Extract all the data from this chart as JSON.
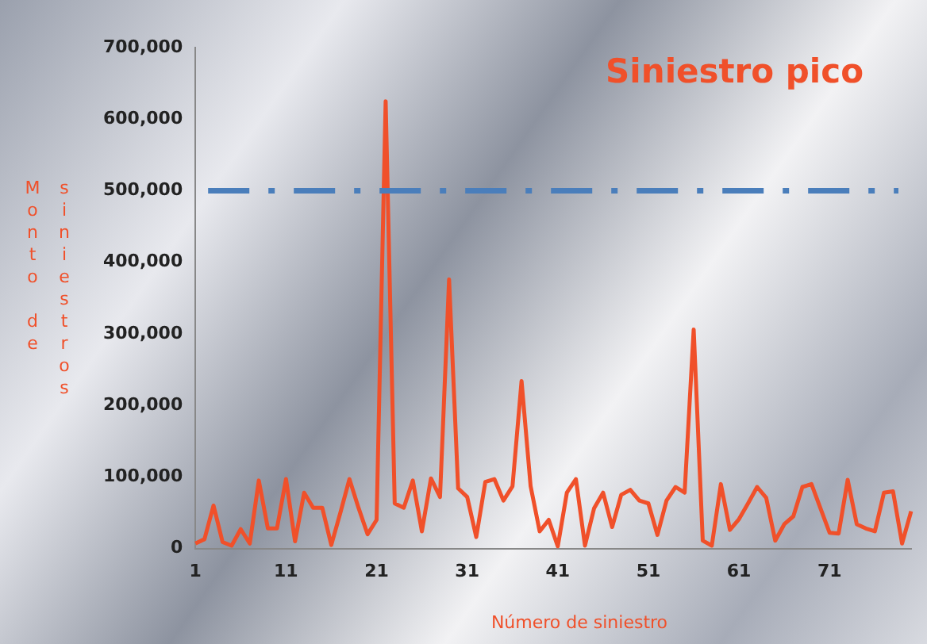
{
  "chart_data": {
    "type": "line",
    "title": "Siniestro pico",
    "xlabel": "Número de siniestro",
    "ylabel": "Monto de siniestros",
    "categories": [
      "1",
      null,
      null,
      null,
      null,
      null,
      null,
      null,
      null,
      null,
      "11",
      null,
      null,
      null,
      null,
      null,
      null,
      null,
      null,
      null,
      "21",
      null,
      null,
      null,
      null,
      null,
      null,
      null,
      null,
      null,
      "31",
      null,
      null,
      null,
      null,
      null,
      null,
      null,
      null,
      null,
      "41",
      null,
      null,
      null,
      null,
      null,
      null,
      null,
      null,
      null,
      "51",
      null,
      null,
      null,
      null,
      null,
      null,
      null,
      null,
      null,
      "61",
      null,
      null,
      null,
      null,
      null,
      null,
      null,
      null,
      null,
      "71",
      null,
      null,
      null,
      null,
      null,
      null,
      null,
      null,
      null
    ],
    "series": [
      {
        "color": "#f0502a",
        "values": [
          7000,
          13000,
          60000,
          9000,
          4000,
          27000,
          7000,
          95000,
          28000,
          28000,
          97000,
          10000,
          78000,
          57000,
          57000,
          5000,
          50000,
          97000,
          57000,
          20000,
          40000,
          625000,
          63000,
          57000,
          95000,
          24000,
          98000,
          72000,
          376000,
          84000,
          72000,
          16000,
          93000,
          97000,
          67000,
          87000,
          234000,
          87000,
          24000,
          40000,
          3000,
          78000,
          97000,
          4000,
          56000,
          78000,
          30000,
          75000,
          82000,
          67000,
          63000,
          19000,
          67000,
          86000,
          78000,
          306000,
          11000,
          4000,
          90000,
          26000,
          41000,
          63000,
          86000,
          71000,
          11000,
          34000,
          45000,
          86000,
          90000,
          56000,
          22000,
          21000,
          96000,
          34000,
          28000,
          24000,
          78000,
          80000,
          7000,
          52000
        ]
      }
    ],
    "ylim": [
      0,
      700000
    ],
    "yticks": [
      0,
      {
        "value": 100000,
        "label": "100,000"
      },
      {
        "value": 200000,
        "label": "200,000"
      },
      {
        "value": 300000,
        "label": "300,000"
      },
      {
        "value": 400000,
        "label": "400,000"
      },
      {
        "value": 500000,
        "label": "500,000"
      },
      {
        "value": 600000,
        "label": "600,000"
      },
      {
        "value": 700000,
        "label": "700,000"
      }
    ],
    "ref_lines": [
      {
        "axis": "y",
        "value": 500000,
        "color": "#4a7ebb",
        "line_style": "dashdot"
      }
    ],
    "grid": false,
    "legend": false,
    "marker": "none",
    "line_style": "solid"
  }
}
